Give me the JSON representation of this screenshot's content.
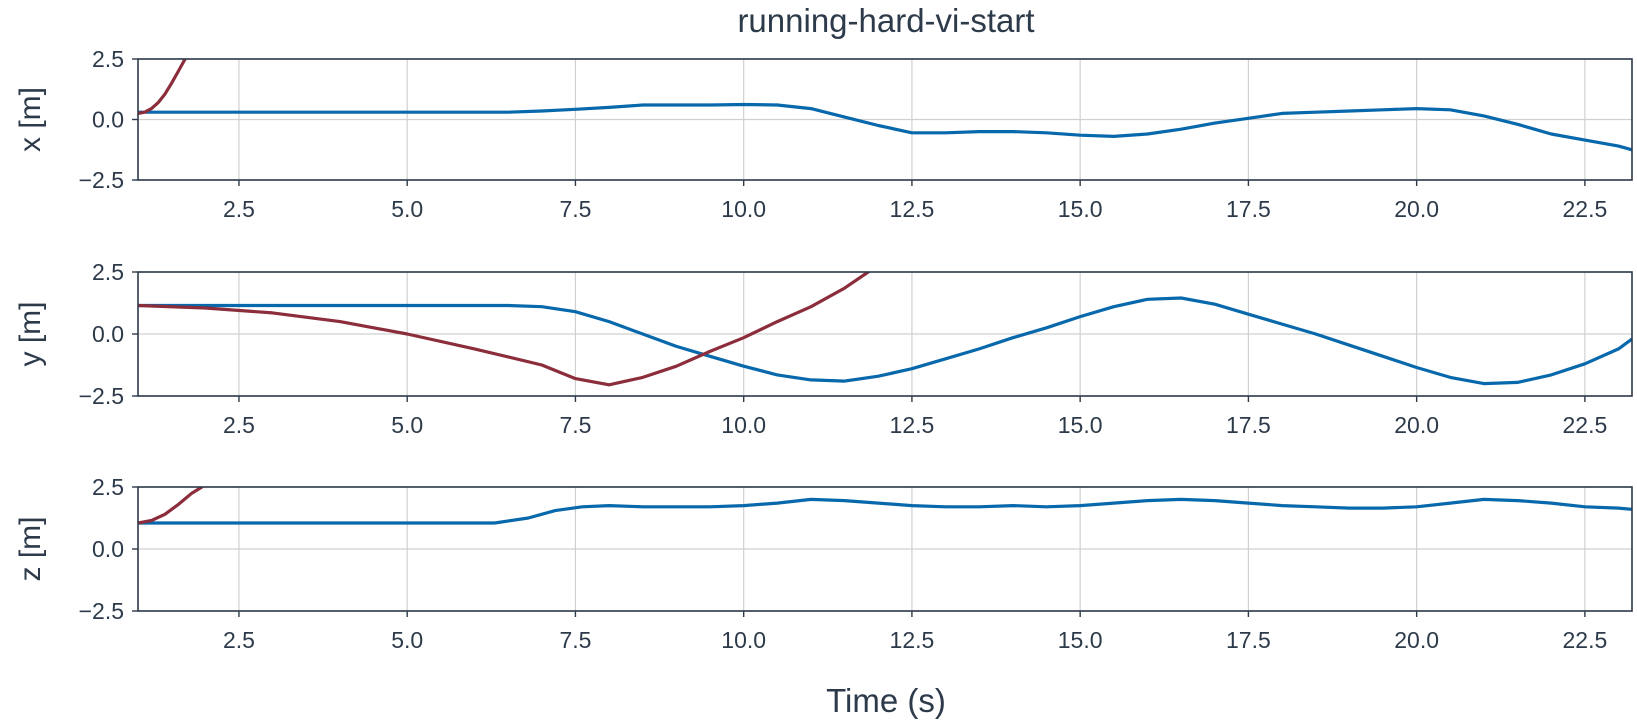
{
  "chart_data": {
    "type": "line",
    "title": "running-hard-vi-start",
    "xlabel": "Time (s)",
    "xlim": [
      1.0,
      23.2
    ],
    "xticks": [
      "2.5",
      "5.0",
      "7.5",
      "10.0",
      "12.5",
      "15.0",
      "17.5",
      "20.0",
      "22.5"
    ],
    "xtick_values": [
      2.5,
      5.0,
      7.5,
      10.0,
      12.5,
      15.0,
      17.5,
      20.0,
      22.5
    ],
    "grid": true,
    "colors": {
      "blue": "#0868ac",
      "red": "#8c2d3c"
    },
    "subplots": [
      {
        "ylabel": "x [m]",
        "ylim": [
          -2.5,
          2.5
        ],
        "yticks": [
          "2.5",
          "0.0",
          "−2.5"
        ],
        "ytick_values": [
          2.5,
          0.0,
          -2.5
        ],
        "series": [
          {
            "color": "#0868ac",
            "x": [
              1.0,
              3.0,
              5.0,
              6.5,
              7.0,
              7.5,
              8.0,
              8.5,
              9.0,
              9.5,
              10.0,
              10.5,
              11.0,
              11.5,
              12.0,
              12.5,
              13.0,
              13.5,
              14.0,
              14.5,
              15.0,
              15.5,
              16.0,
              16.5,
              17.0,
              17.5,
              18.0,
              18.5,
              19.0,
              19.5,
              20.0,
              20.5,
              21.0,
              21.5,
              22.0,
              22.5,
              23.0,
              23.2
            ],
            "y": [
              0.3,
              0.3,
              0.3,
              0.3,
              0.35,
              0.42,
              0.5,
              0.6,
              0.6,
              0.6,
              0.62,
              0.6,
              0.45,
              0.1,
              -0.25,
              -0.55,
              -0.55,
              -0.5,
              -0.5,
              -0.55,
              -0.65,
              -0.7,
              -0.6,
              -0.4,
              -0.15,
              0.05,
              0.25,
              0.3,
              0.35,
              0.4,
              0.45,
              0.4,
              0.15,
              -0.2,
              -0.6,
              -0.85,
              -1.1,
              -1.25
            ]
          },
          {
            "color": "#8c2d3c",
            "x": [
              1.0,
              1.1,
              1.2,
              1.3,
              1.4,
              1.5,
              1.6,
              1.7
            ],
            "y": [
              0.25,
              0.3,
              0.45,
              0.7,
              1.05,
              1.5,
              2.0,
              2.5
            ]
          }
        ]
      },
      {
        "ylabel": "y [m]",
        "ylim": [
          -2.5,
          2.5
        ],
        "yticks": [
          "2.5",
          "0.0",
          "−2.5"
        ],
        "ytick_values": [
          2.5,
          0.0,
          -2.5
        ],
        "series": [
          {
            "color": "#0868ac",
            "x": [
              1.0,
              3.0,
              5.0,
              6.5,
              7.0,
              7.5,
              8.0,
              8.5,
              9.0,
              9.5,
              10.0,
              10.5,
              11.0,
              11.5,
              12.0,
              12.5,
              13.0,
              13.5,
              14.0,
              14.5,
              15.0,
              15.5,
              16.0,
              16.5,
              17.0,
              17.5,
              18.0,
              18.5,
              19.0,
              19.5,
              20.0,
              20.5,
              21.0,
              21.5,
              22.0,
              22.5,
              23.0,
              23.2
            ],
            "y": [
              1.15,
              1.15,
              1.15,
              1.15,
              1.1,
              0.9,
              0.5,
              0.0,
              -0.5,
              -0.9,
              -1.3,
              -1.65,
              -1.85,
              -1.9,
              -1.7,
              -1.4,
              -1.0,
              -0.6,
              -0.15,
              0.25,
              0.7,
              1.1,
              1.4,
              1.45,
              1.2,
              0.8,
              0.4,
              0.0,
              -0.45,
              -0.9,
              -1.35,
              -1.75,
              -2.0,
              -1.95,
              -1.65,
              -1.2,
              -0.6,
              -0.2
            ]
          },
          {
            "color": "#8c2d3c",
            "x": [
              1.0,
              2.0,
              3.0,
              4.0,
              5.0,
              6.0,
              7.0,
              7.5,
              8.0,
              8.5,
              9.0,
              9.5,
              10.0,
              10.5,
              11.0,
              11.5,
              11.85
            ],
            "y": [
              1.15,
              1.05,
              0.85,
              0.5,
              0.0,
              -0.6,
              -1.25,
              -1.8,
              -2.05,
              -1.75,
              -1.3,
              -0.7,
              -0.15,
              0.5,
              1.1,
              1.85,
              2.5
            ]
          }
        ]
      },
      {
        "ylabel": "z [m]",
        "ylim": [
          -2.5,
          2.5
        ],
        "yticks": [
          "2.5",
          "0.0",
          "−2.5"
        ],
        "ytick_values": [
          2.5,
          0.0,
          -2.5
        ],
        "series": [
          {
            "color": "#0868ac",
            "x": [
              1.0,
              3.0,
              5.0,
              6.3,
              6.8,
              7.2,
              7.6,
              8.0,
              8.5,
              9.0,
              9.5,
              10.0,
              10.5,
              11.0,
              11.5,
              12.0,
              12.5,
              13.0,
              13.5,
              14.0,
              14.5,
              15.0,
              15.5,
              16.0,
              16.5,
              17.0,
              17.5,
              18.0,
              18.5,
              19.0,
              19.5,
              20.0,
              20.5,
              21.0,
              21.5,
              22.0,
              22.5,
              23.0,
              23.2
            ],
            "y": [
              1.05,
              1.05,
              1.05,
              1.05,
              1.25,
              1.55,
              1.7,
              1.75,
              1.7,
              1.7,
              1.7,
              1.75,
              1.85,
              2.0,
              1.95,
              1.85,
              1.75,
              1.7,
              1.7,
              1.75,
              1.7,
              1.75,
              1.85,
              1.95,
              2.0,
              1.95,
              1.85,
              1.75,
              1.7,
              1.65,
              1.65,
              1.7,
              1.85,
              2.0,
              1.95,
              1.85,
              1.7,
              1.65,
              1.6
            ]
          },
          {
            "color": "#8c2d3c",
            "x": [
              1.0,
              1.2,
              1.4,
              1.6,
              1.8,
              1.95
            ],
            "y": [
              1.05,
              1.15,
              1.4,
              1.8,
              2.25,
              2.5
            ]
          }
        ]
      }
    ]
  }
}
